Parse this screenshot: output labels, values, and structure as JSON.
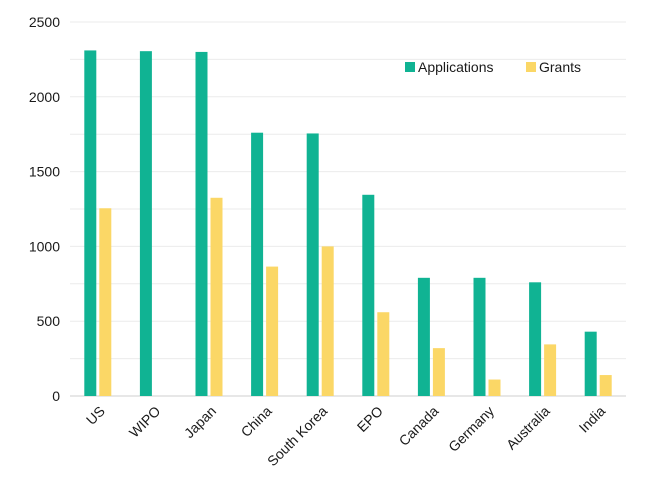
{
  "chart_data": {
    "type": "bar",
    "title": "",
    "xlabel": "",
    "ylabel": "",
    "categories": [
      "US",
      "WIPO",
      "Japan",
      "China",
      "South Korea",
      "EPO",
      "Canada",
      "Germany",
      "Australia",
      "India"
    ],
    "series": [
      {
        "name": "Applications",
        "color": "#10b393",
        "values": [
          2310,
          2305,
          2300,
          1760,
          1755,
          1345,
          790,
          790,
          760,
          430
        ]
      },
      {
        "name": "Grants",
        "color": "#fbd766",
        "values": [
          1255,
          0,
          1325,
          865,
          1000,
          560,
          320,
          110,
          345,
          140
        ]
      }
    ],
    "ylim": [
      0,
      2500
    ],
    "yticks": [
      0,
      500,
      1000,
      1500,
      2000,
      2500
    ],
    "grid": true,
    "legend_position": "top-right"
  }
}
